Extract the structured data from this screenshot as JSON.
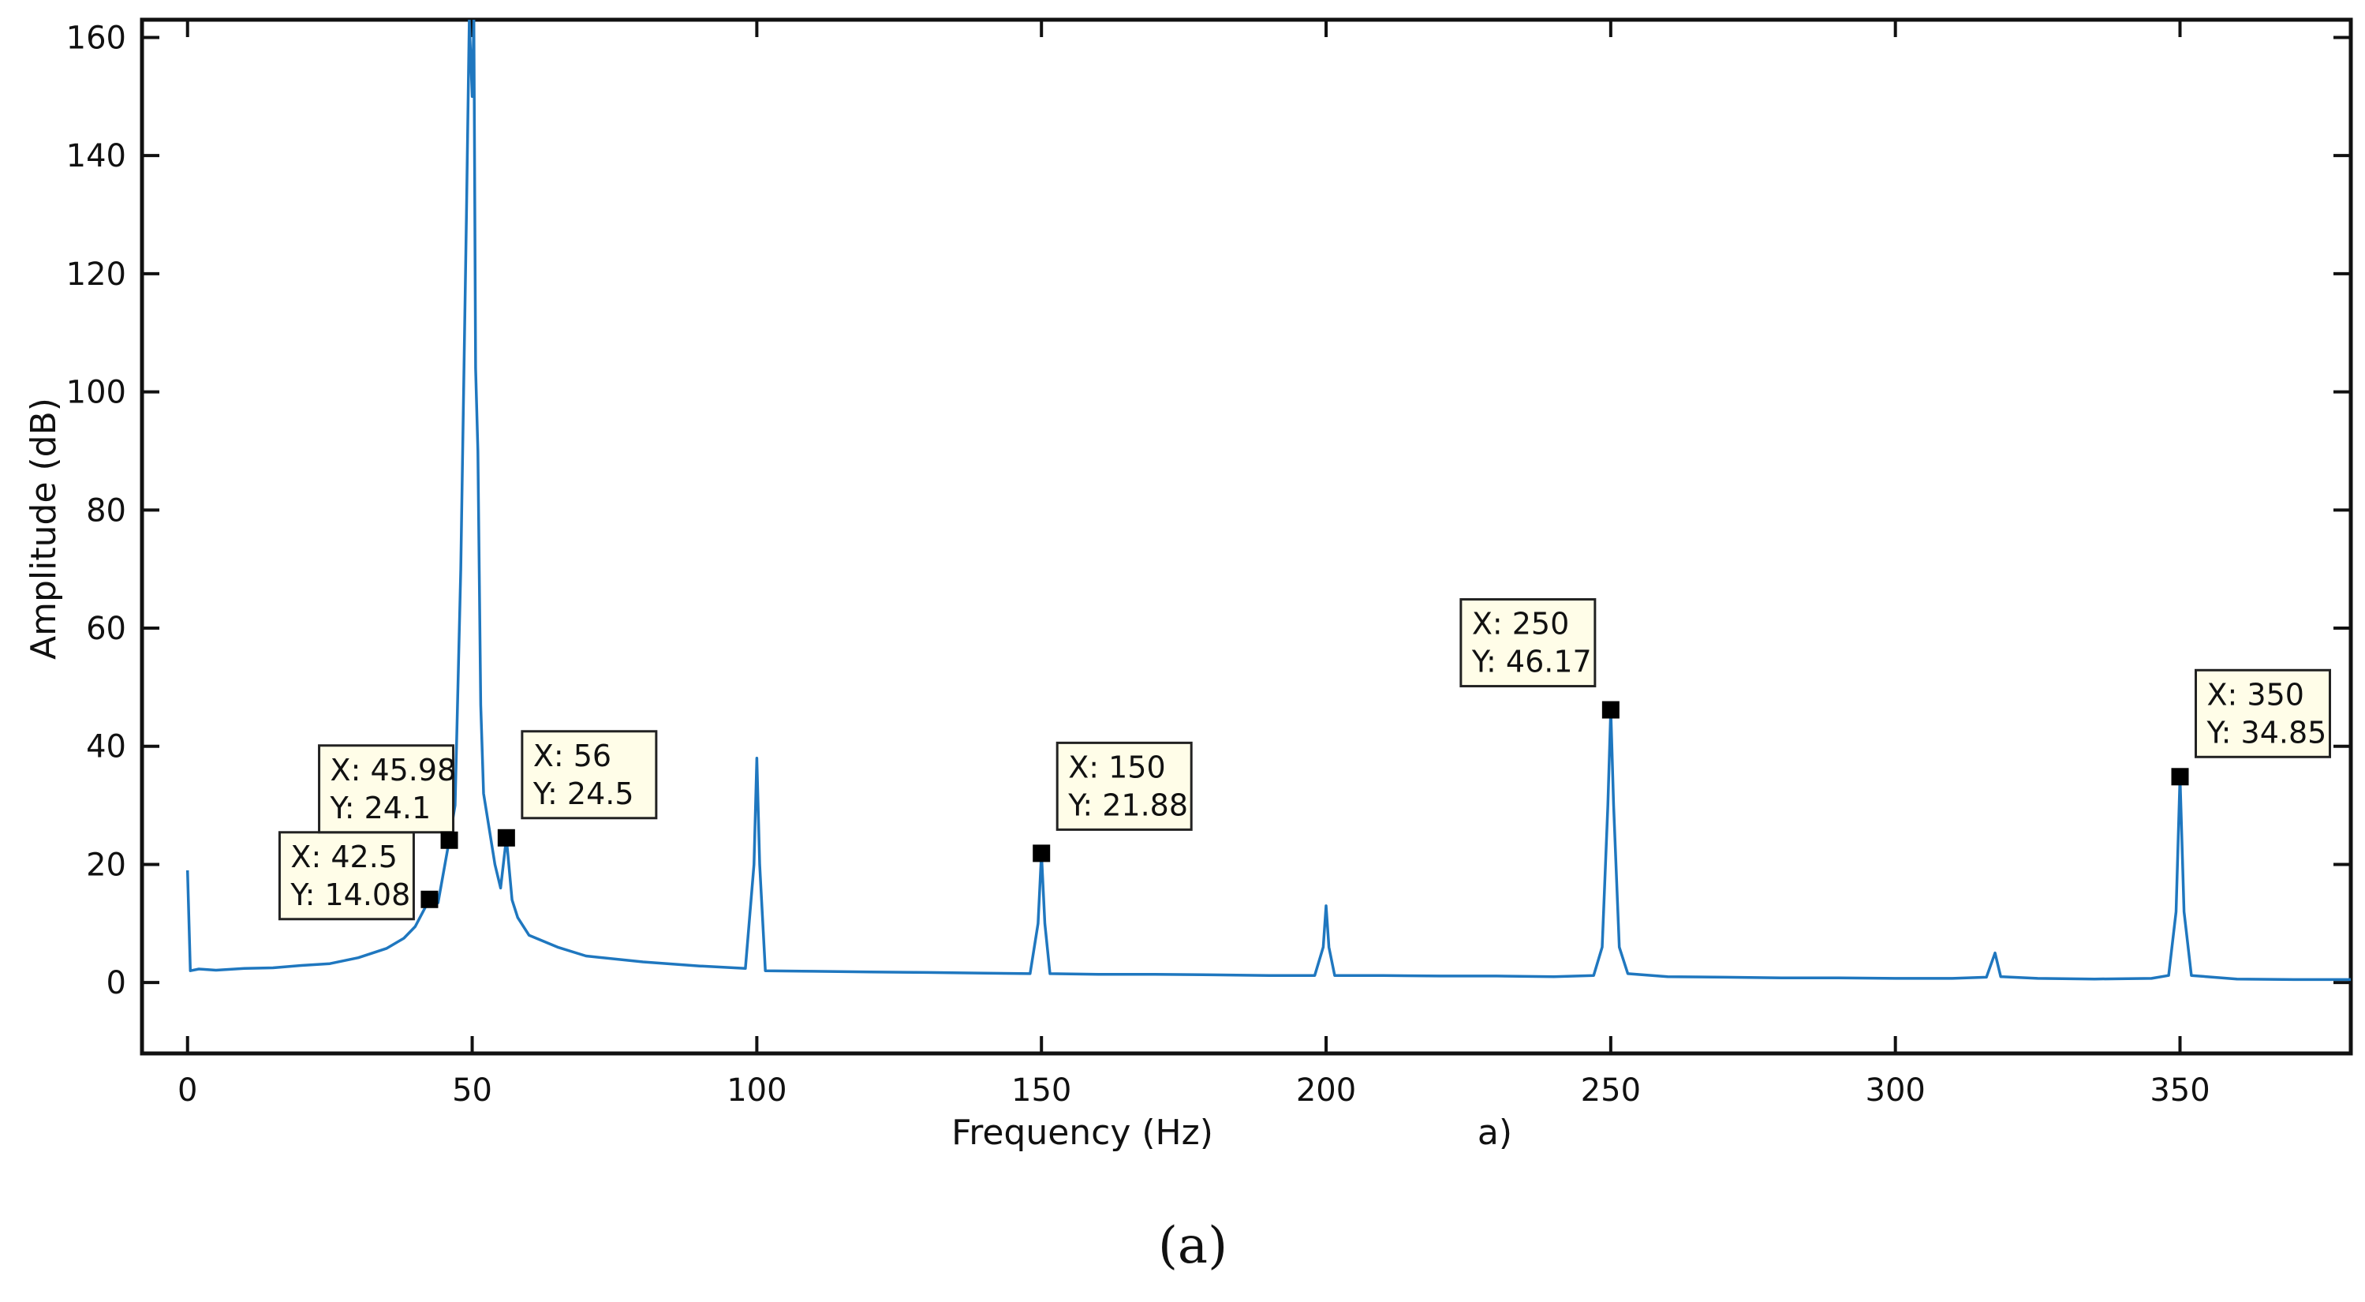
{
  "chart_data": {
    "type": "line",
    "title": "",
    "xlabel": "Frequency (Hz)",
    "ylabel": "Amplitude (dB)",
    "sublabel": "a)",
    "caption": "(a)",
    "xlim": [
      -8,
      380
    ],
    "ylim": [
      -12,
      163
    ],
    "xticks": [
      0,
      50,
      100,
      150,
      200,
      250,
      300,
      350
    ],
    "yticks": [
      0,
      20,
      40,
      60,
      80,
      100,
      120,
      140,
      160
    ],
    "grid": false,
    "legend": "none",
    "series": [
      {
        "color": "#1f77bf",
        "points": [
          [
            0,
            19
          ],
          [
            0.5,
            2
          ],
          [
            2,
            2.3
          ],
          [
            5,
            2.1
          ],
          [
            10,
            2.4
          ],
          [
            15,
            2.5
          ],
          [
            20,
            2.9
          ],
          [
            25,
            3.2
          ],
          [
            30,
            4.2
          ],
          [
            35,
            5.8
          ],
          [
            38,
            7.5
          ],
          [
            40,
            9.5
          ],
          [
            42.5,
            14.08
          ],
          [
            44,
            13.5
          ],
          [
            45.98,
            24.1
          ],
          [
            47,
            30
          ],
          [
            48,
            70
          ],
          [
            49,
            130
          ],
          [
            49.5,
            163
          ],
          [
            50,
            150
          ],
          [
            50.3,
            163
          ],
          [
            50.6,
            104
          ],
          [
            51,
            90
          ],
          [
            51.5,
            47
          ],
          [
            52,
            32
          ],
          [
            53,
            26
          ],
          [
            54,
            20
          ],
          [
            55,
            16
          ],
          [
            56,
            24.5
          ],
          [
            57,
            14
          ],
          [
            58,
            11
          ],
          [
            60,
            8
          ],
          [
            65,
            6
          ],
          [
            70,
            4.5
          ],
          [
            80,
            3.5
          ],
          [
            90,
            2.8
          ],
          [
            98,
            2.4
          ],
          [
            99.5,
            20
          ],
          [
            100,
            38
          ],
          [
            100.5,
            20
          ],
          [
            101.5,
            2
          ],
          [
            110,
            1.9
          ],
          [
            120,
            1.8
          ],
          [
            130,
            1.7
          ],
          [
            140,
            1.6
          ],
          [
            148,
            1.5
          ],
          [
            149.4,
            10
          ],
          [
            150,
            21.88
          ],
          [
            150.6,
            10
          ],
          [
            151.5,
            1.5
          ],
          [
            160,
            1.4
          ],
          [
            170,
            1.4
          ],
          [
            180,
            1.3
          ],
          [
            190,
            1.2
          ],
          [
            198,
            1.2
          ],
          [
            199.5,
            6
          ],
          [
            200,
            13
          ],
          [
            200.5,
            6
          ],
          [
            201.5,
            1.2
          ],
          [
            210,
            1.2
          ],
          [
            220,
            1.1
          ],
          [
            230,
            1.1
          ],
          [
            240,
            1.0
          ],
          [
            247,
            1.2
          ],
          [
            248.5,
            6
          ],
          [
            249.5,
            30
          ],
          [
            250,
            46.17
          ],
          [
            250.5,
            30
          ],
          [
            251.5,
            6
          ],
          [
            253,
            1.5
          ],
          [
            260,
            1.0
          ],
          [
            270,
            0.9
          ],
          [
            280,
            0.8
          ],
          [
            290,
            0.8
          ],
          [
            300,
            0.7
          ],
          [
            310,
            0.7
          ],
          [
            316,
            0.9
          ],
          [
            317.5,
            5
          ],
          [
            318.5,
            1
          ],
          [
            325,
            0.7
          ],
          [
            335,
            0.6
          ],
          [
            345,
            0.7
          ],
          [
            348,
            1.2
          ],
          [
            349.3,
            12
          ],
          [
            350,
            34.85
          ],
          [
            350.7,
            12
          ],
          [
            352,
            1.2
          ],
          [
            360,
            0.6
          ],
          [
            370,
            0.5
          ],
          [
            380,
            0.5
          ]
        ]
      }
    ],
    "annotations": [
      {
        "x": 42.5,
        "y": 14.08,
        "line1": "X: 42.5",
        "line2": "Y: 14.08"
      },
      {
        "x": 45.98,
        "y": 24.1,
        "line1": "X: 45.98",
        "line2": "Y: 24.1"
      },
      {
        "x": 56,
        "y": 24.5,
        "line1": "X: 56",
        "line2": "Y: 24.5"
      },
      {
        "x": 150,
        "y": 21.88,
        "line1": "X: 150",
        "line2": "Y: 21.88"
      },
      {
        "x": 250,
        "y": 46.17,
        "line1": "X: 250",
        "line2": "Y: 46.17"
      },
      {
        "x": 350,
        "y": 34.85,
        "line1": "X: 350",
        "line2": "Y: 34.85"
      }
    ],
    "annotation_box_color": "#fffde8"
  }
}
